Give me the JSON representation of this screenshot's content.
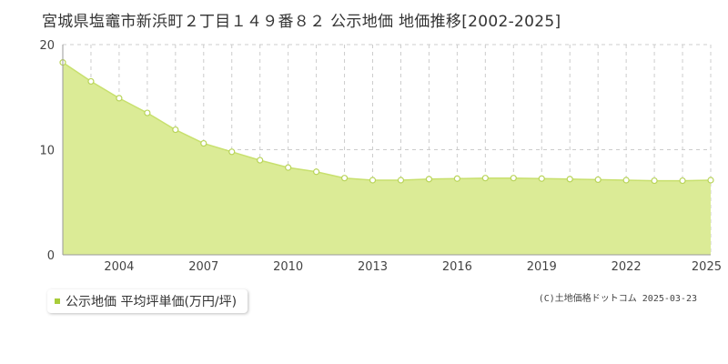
{
  "page": {
    "title": "宮城県塩竈市新浜町２丁目１４９番８２ 公示地価 地価推移[2002-2025]",
    "copyright": "(C)土地価格ドットコム 2025-03-23"
  },
  "colors": {
    "area_fill": "#dbeb96",
    "line": "#c8e06e",
    "marker_stroke": "#b9d45a",
    "marker_fill": "#ffffff",
    "grid": "#cccccc",
    "plot_bg": "#ffffff",
    "legend_swatch": "#a8cc3a"
  },
  "chart_data": {
    "type": "area",
    "title": "",
    "xlabel": "",
    "ylabel": "",
    "x": [
      2002,
      2003,
      2004,
      2005,
      2006,
      2007,
      2008,
      2009,
      2010,
      2011,
      2012,
      2013,
      2014,
      2015,
      2016,
      2017,
      2018,
      2019,
      2020,
      2021,
      2022,
      2023,
      2024,
      2025
    ],
    "series": [
      {
        "name": "公示地価 平均坪単価(万円/坪)",
        "values": [
          18.3,
          16.5,
          14.9,
          13.5,
          11.9,
          10.6,
          9.8,
          9.0,
          8.3,
          7.9,
          7.3,
          7.1,
          7.1,
          7.2,
          7.25,
          7.3,
          7.3,
          7.25,
          7.2,
          7.15,
          7.1,
          7.05,
          7.05,
          7.1
        ]
      }
    ],
    "xlim": [
      2002,
      2025
    ],
    "ylim": [
      0,
      20
    ],
    "x_ticks": [
      "2004",
      "2007",
      "2010",
      "2013",
      "2016",
      "2019",
      "2022",
      "2025"
    ],
    "y_ticks": [
      "0",
      "10",
      "20"
    ],
    "grid": true,
    "legend_position": "bottom-left"
  }
}
